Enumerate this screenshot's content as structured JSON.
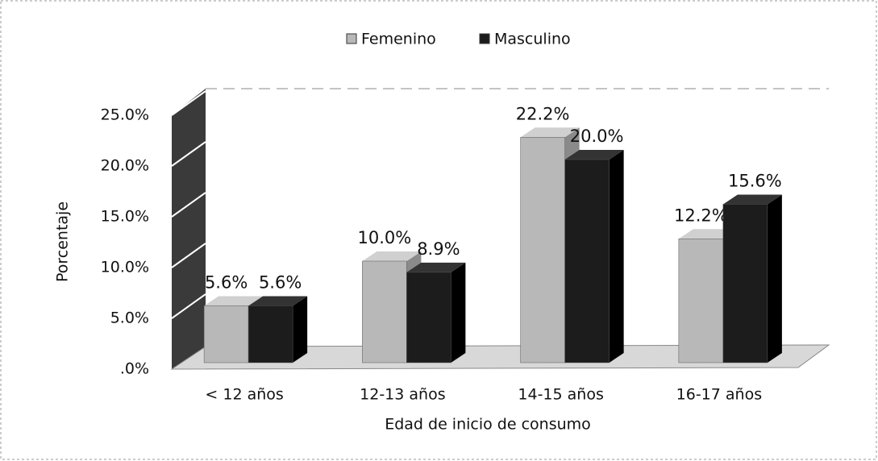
{
  "chart_data": {
    "type": "bar",
    "title": null,
    "categories": [
      "< 12 años",
      "12-13 años",
      "14-15 años",
      "16-17 años"
    ],
    "series": [
      {
        "name": "Femenino",
        "color": "#b8b8b8",
        "values": [
          5.6,
          10.0,
          22.2,
          12.2
        ],
        "value_labels": [
          "5.6%",
          "10.0%",
          "22.2%",
          "12.2%"
        ]
      },
      {
        "name": "Masculino",
        "color": "#1c1c1c",
        "values": [
          5.6,
          8.9,
          20.0,
          15.6
        ],
        "value_labels": [
          "5.6%",
          "8.9%",
          "20.0%",
          "15.6%"
        ]
      }
    ],
    "ylabel": "Porcentaje",
    "xlabel": "Edad de inicio de consumo",
    "ylim": [
      0,
      25
    ],
    "yticks": [
      {
        "value": 0,
        "label": ".0%"
      },
      {
        "value": 5,
        "label": "5.0%"
      },
      {
        "value": 10,
        "label": "10.0%"
      },
      {
        "value": 15,
        "label": "15.0%"
      },
      {
        "value": 20,
        "label": "20.0%"
      },
      {
        "value": 25,
        "label": "25.0%"
      }
    ],
    "grid": true,
    "legend": "top"
  }
}
